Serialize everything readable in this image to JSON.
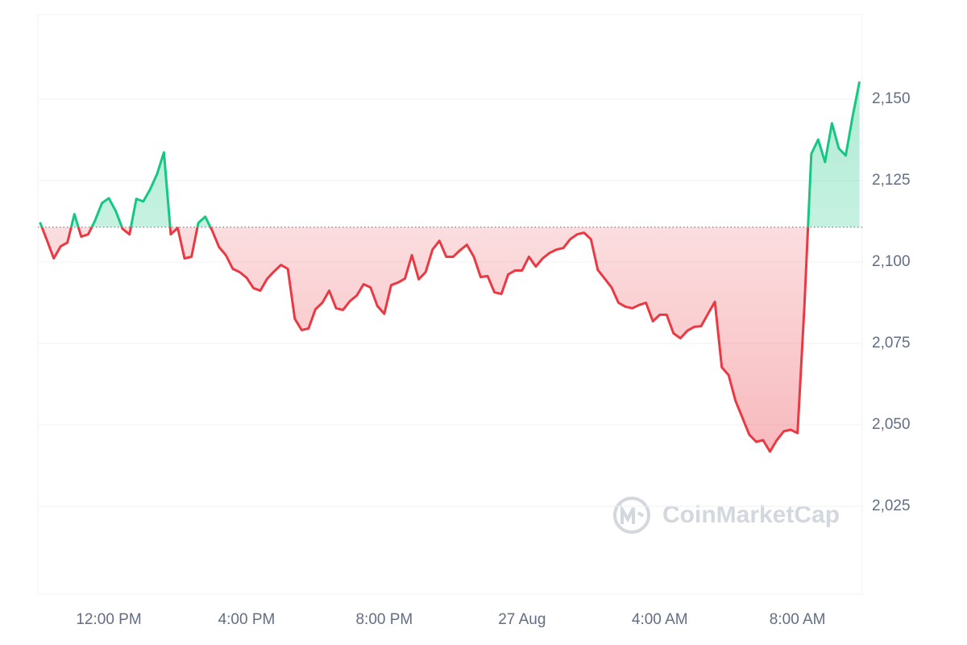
{
  "chart_data": {
    "type": "line",
    "watermark": "CoinMarketCap",
    "x": [
      10.0,
      10.2,
      10.4,
      10.6,
      10.8,
      11.0,
      11.2,
      11.4,
      11.6,
      11.8,
      12.0,
      12.2,
      12.4,
      12.6,
      12.8,
      13.0,
      13.2,
      13.4,
      13.6,
      13.8,
      14.0,
      14.2,
      14.4,
      14.6,
      14.8,
      15.0,
      15.2,
      15.4,
      15.6,
      15.8,
      16.0,
      16.2,
      16.4,
      16.6,
      16.8,
      17.0,
      17.2,
      17.4,
      17.6,
      17.8,
      18.0,
      18.2,
      18.4,
      18.6,
      18.8,
      19.0,
      19.2,
      19.4,
      19.6,
      19.8,
      20.0,
      20.2,
      20.4,
      20.6,
      20.8,
      21.0,
      21.2,
      21.4,
      21.6,
      21.8,
      22.0,
      22.2,
      22.4,
      22.6,
      22.8,
      23.0,
      23.2,
      23.4,
      23.6,
      23.8,
      24.0,
      24.2,
      24.4,
      24.6,
      24.8,
      25.0,
      25.2,
      25.4,
      25.6,
      25.8,
      26.0,
      26.2,
      26.4,
      26.6,
      26.8,
      27.0,
      27.2,
      27.4,
      27.6,
      27.8,
      28.0,
      28.2,
      28.4,
      28.6,
      28.8,
      29.0,
      29.2,
      29.4,
      29.6,
      29.8,
      30.0,
      30.2,
      30.4,
      30.6,
      30.8,
      31.0,
      31.2,
      31.4,
      31.6,
      31.8,
      32.0,
      32.2,
      32.4,
      32.6,
      32.8,
      33.0,
      33.2,
      33.4,
      33.6,
      33.8
    ],
    "values": [
      2112.2,
      2106.8,
      2101.1,
      2104.8,
      2106.0,
      2114.7,
      2107.8,
      2108.5,
      2112.7,
      2118.1,
      2119.6,
      2115.7,
      2110.2,
      2108.5,
      2119.4,
      2118.6,
      2122.3,
      2127.0,
      2133.7,
      2108.5,
      2110.5,
      2101.1,
      2101.6,
      2112.0,
      2113.9,
      2109.7,
      2104.6,
      2102.1,
      2097.9,
      2096.9,
      2095.2,
      2092.0,
      2091.2,
      2094.9,
      2097.1,
      2099.1,
      2097.9,
      2082.6,
      2079.1,
      2079.6,
      2085.5,
      2087.5,
      2091.2,
      2085.8,
      2085.3,
      2088.0,
      2089.7,
      2093.2,
      2092.2,
      2086.5,
      2084.1,
      2092.9,
      2093.7,
      2094.9,
      2102.1,
      2094.7,
      2096.9,
      2103.8,
      2106.5,
      2101.6,
      2101.6,
      2103.6,
      2105.3,
      2101.6,
      2095.4,
      2095.7,
      2090.7,
      2090.2,
      2096.2,
      2097.4,
      2097.4,
      2101.6,
      2098.6,
      2101.1,
      2102.8,
      2103.8,
      2104.3,
      2107.0,
      2108.5,
      2109.0,
      2107.0,
      2097.6,
      2094.9,
      2092.2,
      2087.5,
      2086.3,
      2085.8,
      2086.8,
      2087.5,
      2081.8,
      2083.8,
      2083.8,
      2078.1,
      2076.6,
      2078.9,
      2080.1,
      2080.3,
      2084.1,
      2087.8,
      2067.7,
      2065.3,
      2057.4,
      2052.2,
      2047.0,
      2044.8,
      2045.3,
      2041.8,
      2045.3,
      2048.0,
      2048.5,
      2047.5,
      2086.3,
      2133.2,
      2137.6,
      2130.7,
      2142.6,
      2134.9,
      2132.7,
      2144.6,
      2155.4
    ],
    "baseline": 2110.7,
    "up_color": "#16c784",
    "down_color": "#ea3943",
    "xlim": [
      9.94,
      33.88
    ],
    "xticks": [
      {
        "value": 12,
        "label": "12:00 PM"
      },
      {
        "value": 16,
        "label": "4:00 PM"
      },
      {
        "value": 20,
        "label": "8:00 PM"
      },
      {
        "value": 24,
        "label": "27 Aug"
      },
      {
        "value": 28,
        "label": "4:00 AM"
      },
      {
        "value": 32,
        "label": "8:00 AM"
      }
    ],
    "ylim": [
      1998,
      2176
    ],
    "yticks": [
      {
        "value": 2025,
        "label": "2,025"
      },
      {
        "value": 2050,
        "label": "2,050"
      },
      {
        "value": 2075,
        "label": "2,075"
      },
      {
        "value": 2100,
        "label": "2,100"
      },
      {
        "value": 2125,
        "label": "2,125"
      },
      {
        "value": 2150,
        "label": "2,150"
      }
    ],
    "grid": true
  }
}
